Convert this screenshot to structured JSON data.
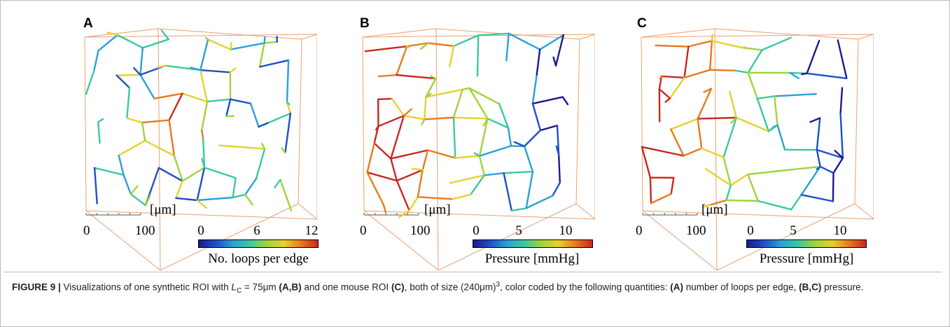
{
  "panels": [
    {
      "letter": "A",
      "unit": "[μm]",
      "scale_ticks": [
        "0",
        "100"
      ],
      "colorbar": {
        "ticks": [
          "0",
          "6",
          "12"
        ],
        "title": "No. loops per edge",
        "range": [
          0,
          12
        ]
      }
    },
    {
      "letter": "B",
      "unit": "[μm]",
      "scale_ticks": [
        "0",
        "100"
      ],
      "colorbar": {
        "ticks": [
          "0",
          "5",
          "10"
        ],
        "title": "Pressure [mmHg]",
        "range": [
          0,
          12
        ]
      }
    },
    {
      "letter": "C",
      "unit": "[μm]",
      "scale_ticks": [
        "0",
        "100"
      ],
      "colorbar": {
        "ticks": [
          "0",
          "5",
          "10"
        ],
        "title": "Pressure [mmHg]",
        "range": [
          0,
          12
        ]
      }
    }
  ],
  "colors": {
    "box": "#e8a070",
    "colormap": [
      "#1a1a8c",
      "#1f4fc8",
      "#2aa0d8",
      "#3cc8a0",
      "#9fd43a",
      "#e6d22a",
      "#e87a1e",
      "#c8281e"
    ]
  },
  "caption": {
    "label": "FIGURE 9 |",
    "part1": " Visualizations of one synthetic ROI with ",
    "lc": "L",
    "lc_sub": "C",
    "part2": " = 75μm ",
    "ref_ab": "(A,B)",
    "part3": " and one mouse ROI ",
    "ref_c": "(C)",
    "part4": ", both of size (240μm)",
    "sup": "3",
    "part5": ", color coded by the following quantities: ",
    "ref_a": "(A)",
    "part6": " number of loops per edge, ",
    "ref_bc": "(B,C)",
    "part7": " pressure."
  }
}
